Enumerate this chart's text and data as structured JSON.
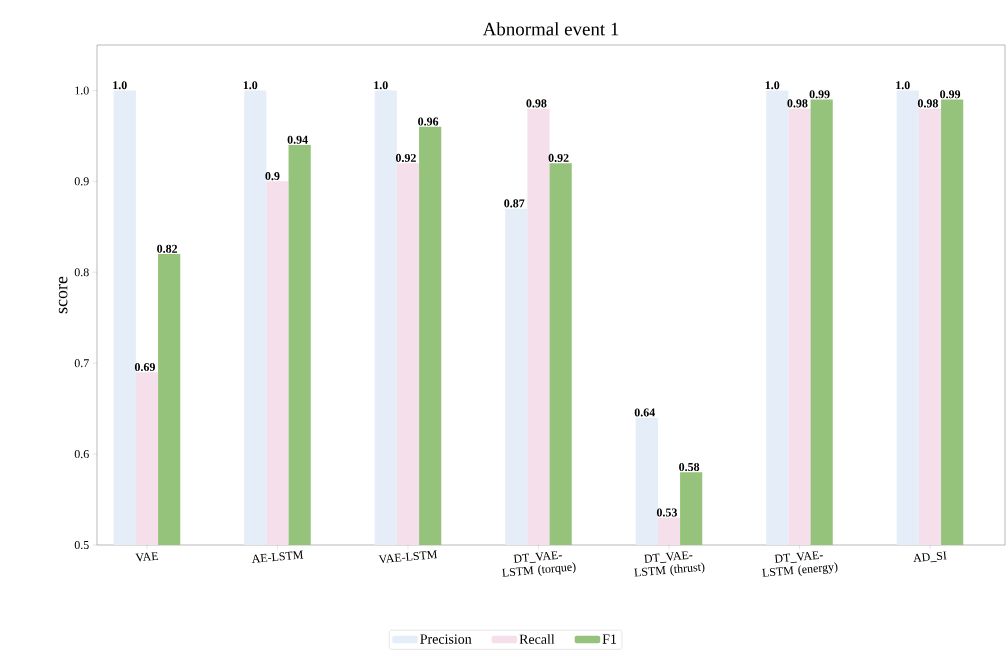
{
  "chart_data": {
    "type": "bar",
    "title": "Abnormal event 1",
    "ylabel": "score",
    "categories": [
      "VAE",
      "AE-LSTM",
      "VAE-LSTM",
      "DT_VAE-LSTM (torque)",
      "DT_VAE-LSTM (thrust)",
      "DT_VAE-LSTM (energy)",
      "AD_SI"
    ],
    "series": [
      {
        "name": "Precision",
        "color": "#e5edf8",
        "values": [
          1.0,
          1.0,
          1.0,
          0.87,
          0.64,
          1.0,
          1.0
        ],
        "value_labels": [
          "1.0",
          "1.0",
          "1.0",
          "0.87",
          "0.64",
          "1.0",
          "1.0"
        ]
      },
      {
        "name": "Recall",
        "color": "#f5dfea",
        "values": [
          0.69,
          0.9,
          0.92,
          0.98,
          0.53,
          0.98,
          0.98
        ],
        "value_labels": [
          "0.69",
          "0.9",
          "0.92",
          "0.98",
          "0.53",
          "0.98",
          "0.98"
        ]
      },
      {
        "name": "F1",
        "color": "#95c37b",
        "values": [
          0.82,
          0.94,
          0.96,
          0.92,
          0.58,
          0.99,
          0.99
        ],
        "value_labels": [
          "0.82",
          "0.94",
          "0.96",
          "0.92",
          "0.58",
          "0.99",
          "0.99"
        ]
      }
    ],
    "ylim": [
      0.5,
      1.05
    ],
    "yticks": [
      0.5,
      0.6,
      0.7,
      0.8,
      0.9,
      {
        "value": 1.0,
        "label": "1.0"
      }
    ],
    "grid": false,
    "legend": "bottom"
  }
}
